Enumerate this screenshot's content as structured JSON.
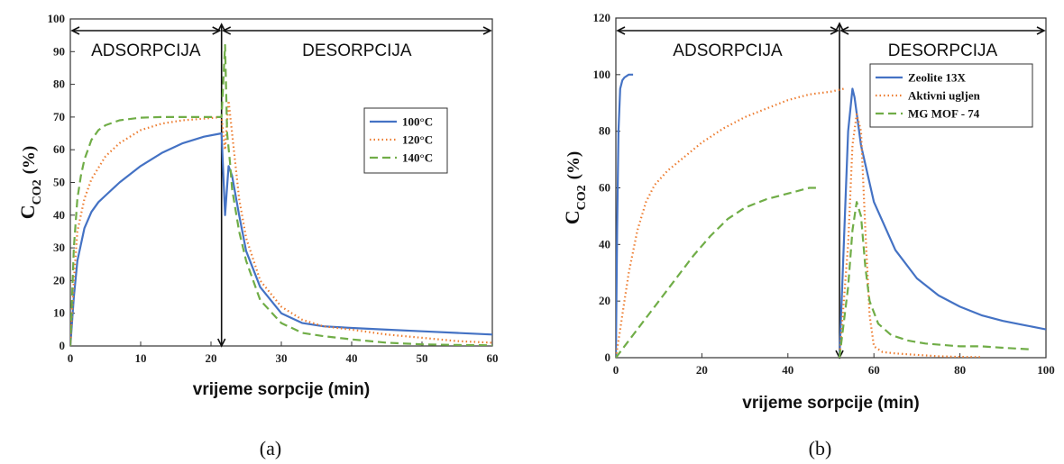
{
  "chart_data": [
    {
      "type": "line",
      "subplot_label": "(a)",
      "xlabel": "vrijeme sorpcije (min)",
      "ylabel": {
        "main": "C",
        "sub": "CO2",
        "suffix": "(%)"
      },
      "xlim": [
        0,
        60
      ],
      "ylim": [
        0,
        100
      ],
      "xticks": [
        0,
        10,
        20,
        30,
        40,
        50,
        60
      ],
      "yticks": [
        0,
        10,
        20,
        30,
        40,
        50,
        60,
        70,
        80,
        90,
        100
      ],
      "grid": false,
      "legend": {
        "position": "right-middle"
      },
      "regions": [
        {
          "label": "ADSORPCIJA",
          "x_range": [
            0,
            21.5
          ]
        },
        {
          "label": "DESORPCIJA",
          "x_range": [
            21.5,
            60
          ]
        }
      ],
      "divider_x": 21.5,
      "series": [
        {
          "name": "100°C",
          "color": "#4472c4",
          "style": "solid",
          "x": [
            0,
            0.5,
            1,
            2,
            3,
            4,
            5,
            7,
            10,
            13,
            16,
            19,
            21.5,
            22,
            22.5,
            23,
            24,
            25,
            27,
            30,
            33,
            36,
            40,
            45,
            50,
            55,
            60
          ],
          "y": [
            0,
            15,
            26,
            36,
            41,
            44,
            46,
            50,
            55,
            59,
            62,
            64,
            65,
            40,
            55,
            52,
            40,
            29,
            18,
            10,
            7,
            6,
            5.5,
            5,
            4.5,
            4,
            3.5
          ]
        },
        {
          "name": "120°C",
          "color": "#ed7d31",
          "style": "dotted",
          "x": [
            0,
            0.5,
            1,
            2,
            3,
            5,
            7,
            10,
            13,
            16,
            19,
            21.5,
            22,
            22.5,
            23,
            24,
            25,
            27,
            30,
            33,
            36,
            40,
            45,
            50,
            55,
            60
          ],
          "y": [
            0,
            20,
            35,
            45,
            51,
            58,
            62,
            66,
            68,
            69,
            69.5,
            70,
            60,
            75,
            65,
            45,
            33,
            20,
            12,
            8,
            6,
            5,
            3.5,
            2.5,
            1.5,
            1
          ]
        },
        {
          "name": "140°C",
          "color": "#70ad47",
          "style": "dashed",
          "x": [
            0,
            0.5,
            1,
            1.5,
            2,
            3,
            4,
            5,
            7,
            10,
            13,
            16,
            21.5,
            22,
            22.3,
            22.7,
            23,
            24,
            25,
            27,
            30,
            33,
            36,
            40,
            45,
            50,
            55,
            60
          ],
          "y": [
            0,
            30,
            45,
            52,
            57,
            63,
            66,
            67.5,
            69,
            69.8,
            70,
            70,
            70,
            92,
            65,
            56,
            48,
            35,
            26,
            14,
            7,
            4,
            3,
            2,
            1,
            0.5,
            0.3,
            0.2
          ]
        }
      ]
    },
    {
      "type": "line",
      "subplot_label": "(b)",
      "xlabel": "vrijeme sorpcije (min)",
      "ylabel": {
        "main": "C",
        "sub": "CO2",
        "suffix": "(%)"
      },
      "xlim": [
        0,
        100
      ],
      "ylim": [
        0,
        120
      ],
      "xticks": [
        0,
        20,
        40,
        60,
        80,
        100
      ],
      "yticks": [
        0,
        20,
        40,
        60,
        80,
        100,
        120
      ],
      "grid": false,
      "legend": {
        "position": "top-right"
      },
      "regions": [
        {
          "label": "ADSORPCIJA",
          "x_range": [
            0,
            52
          ]
        },
        {
          "label": "DESORPCIJA",
          "x_range": [
            52,
            100
          ]
        }
      ],
      "divider_x": 52,
      "series": [
        {
          "name": "Zeolite 13X",
          "color": "#4472c4",
          "style": "solid",
          "x": [
            0,
            0.3,
            0.6,
            1,
            1.5,
            2,
            3,
            4
          ],
          "y": [
            0,
            45,
            80,
            95,
            98,
            99,
            100,
            100
          ]
        },
        {
          "name": "Zeolite 13X",
          "color": "#4472c4",
          "style": "solid",
          "x": [
            52,
            53,
            54,
            55,
            55.5,
            57,
            60,
            65,
            70,
            75,
            80,
            85,
            90,
            95,
            100
          ],
          "y": [
            0,
            40,
            80,
            95,
            92,
            75,
            55,
            38,
            28,
            22,
            18,
            15,
            13,
            11.5,
            10
          ]
        },
        {
          "name": "Aktivni ugljen",
          "color": "#ed7d31",
          "style": "dotted",
          "x": [
            0,
            1,
            2,
            3,
            5,
            7,
            9,
            12,
            16,
            20,
            25,
            30,
            35,
            40,
            45,
            50,
            53
          ],
          "y": [
            0,
            10,
            20,
            30,
            45,
            55,
            61,
            66,
            71,
            76,
            81,
            85,
            88,
            91,
            93,
            94,
            95
          ]
        },
        {
          "name": "Aktivni ugljen",
          "color": "#ed7d31",
          "style": "dotted",
          "x": [
            52,
            54,
            55,
            56,
            57,
            58,
            59,
            60,
            62,
            65,
            70,
            75,
            80,
            85
          ],
          "y": [
            0,
            40,
            75,
            86,
            80,
            45,
            15,
            4,
            2,
            1.5,
            1,
            0.5,
            0.3,
            0.2
          ]
        },
        {
          "name": "MG MOF - 74",
          "color": "#70ad47",
          "style": "dashed",
          "x": [
            0,
            3,
            6,
            10,
            14,
            18,
            22,
            26,
            30,
            35,
            40,
            45,
            47
          ],
          "y": [
            0,
            6,
            12,
            20,
            28,
            36,
            43,
            49,
            53,
            56,
            58,
            60,
            60
          ]
        },
        {
          "name": "MG MOF - 74",
          "color": "#70ad47",
          "style": "dashed",
          "x": [
            52,
            54,
            55,
            56,
            57,
            58,
            59,
            61,
            64,
            68,
            72,
            76,
            80,
            85,
            90,
            96
          ],
          "y": [
            0,
            25,
            45,
            55,
            50,
            32,
            20,
            12,
            8,
            6,
            5,
            4.5,
            4,
            4,
            3.5,
            3
          ]
        }
      ]
    }
  ]
}
